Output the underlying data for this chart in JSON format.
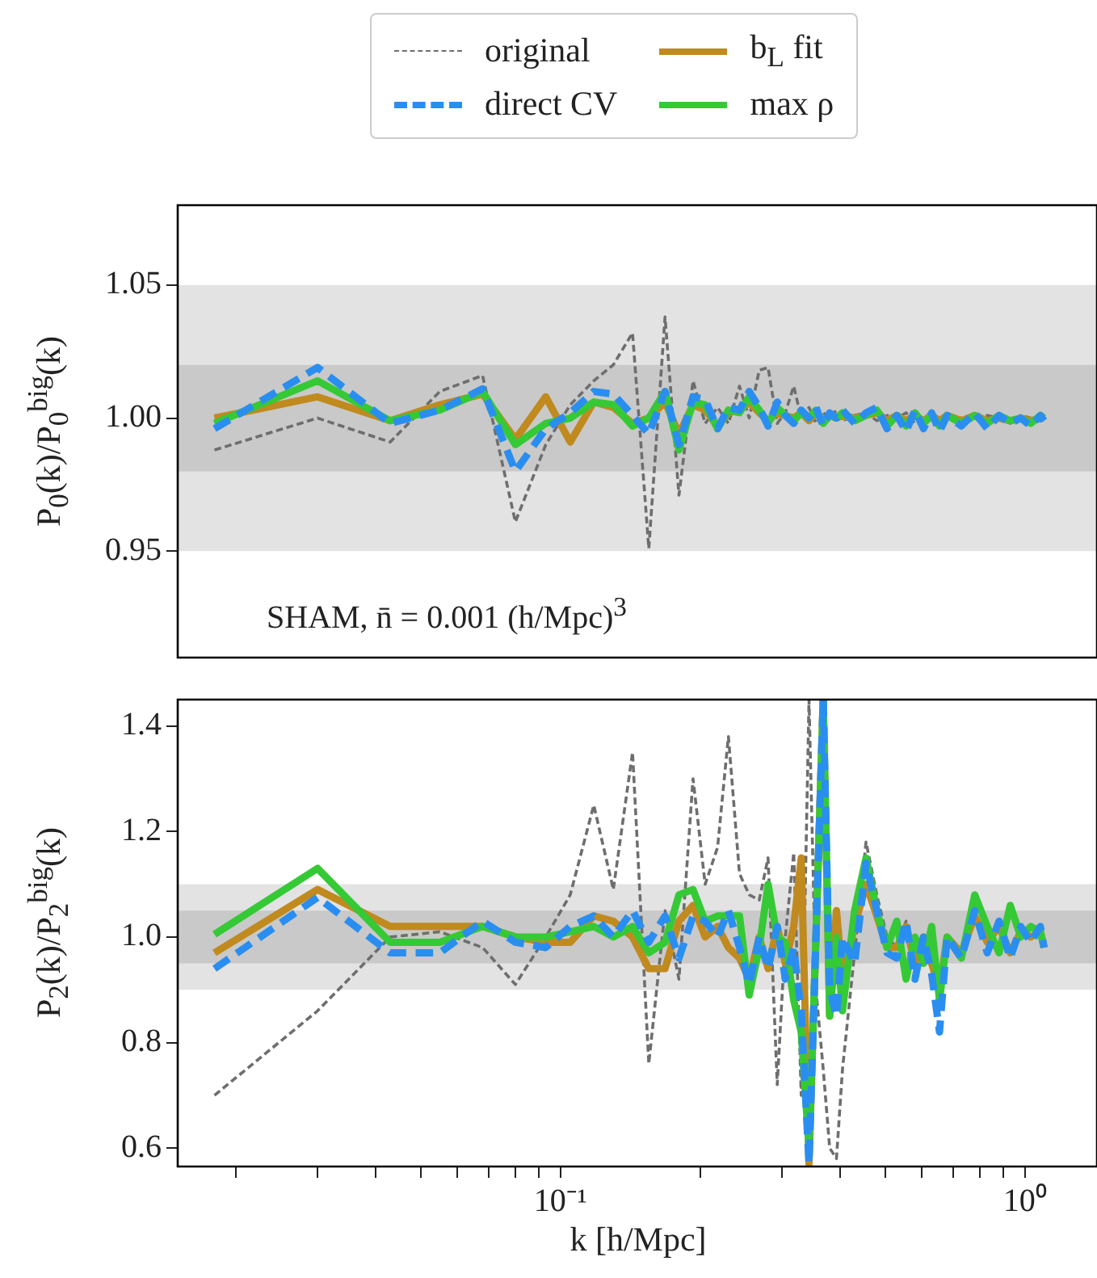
{
  "chart_data": [
    {
      "type": "line",
      "ylabel": "P$_{0}$(k)/P$_{0}$$^{big}$(k)",
      "legend": "top",
      "log": "x",
      "grid": false,
      "tick_labels": "y",
      "x": [
        0.018,
        0.03,
        0.043,
        0.055,
        0.068,
        0.08,
        0.093,
        0.105,
        0.118,
        0.13,
        0.143,
        0.155,
        0.168,
        0.18,
        0.193,
        0.205,
        0.218,
        0.23,
        0.243,
        0.255,
        0.268,
        0.28,
        0.293,
        0.305,
        0.318,
        0.33,
        0.343,
        0.355,
        0.368,
        0.38,
        0.393,
        0.405,
        0.43,
        0.455,
        0.48,
        0.505,
        0.53,
        0.555,
        0.58,
        0.605,
        0.63,
        0.655,
        0.68,
        0.73,
        0.78,
        0.83,
        0.88,
        0.93,
        0.98,
        1.03,
        1.08,
        1.1
      ],
      "xlim": [
        0.015,
        1.43
      ],
      "ylim": [
        0.91,
        1.08
      ],
      "yticks": [
        {
          "value": 0.95,
          "label": "0.95"
        },
        {
          "value": 1,
          "label": "1.00"
        },
        {
          "value": 1.05,
          "label": "1.05"
        }
      ],
      "bands": [
        {
          "axis": "y",
          "from": 0.95,
          "to": 1.05,
          "color": "#e3e3e3"
        },
        {
          "axis": "y",
          "from": 0.98,
          "to": 1.02,
          "color": "#c9c9c9"
        }
      ],
      "annotations": [
        "SHAM, n̄ = 0.001 (h/Mpc)$^{3}$"
      ],
      "series": [
        {
          "name": "original",
          "color": "#6e6e6e",
          "line_style": "dashed",
          "values": [
            0.988,
            1.0,
            0.991,
            1.01,
            1.016,
            0.961,
            0.99,
            1.005,
            1.014,
            1.02,
            1.032,
            0.951,
            1.038,
            0.971,
            1.014,
            0.998,
            1.004,
            0.998,
            1.012,
            1.0,
            1.018,
            1.019,
            0.998,
            1.002,
            1.012,
            1.0,
            1.004,
            0.998,
            1.002,
            1.0,
            1.003,
            0.999,
            1.001,
            1.002,
            0.999,
            1.001,
            1.0,
            1.002,
            0.998,
            1.001,
            1.0,
            0.999,
            1.001,
            1.0,
            0.999,
            1.001,
            1.0,
            0.998,
            1.001,
            1.0,
            0.999,
            1.0
          ]
        },
        {
          "name": "b$_{L}$ fit",
          "color": "#c08a1e",
          "line_style": "solid",
          "values": [
            1.0,
            1.008,
            0.999,
            1.005,
            1.009,
            0.992,
            1.008,
            0.991,
            1.006,
            1.004,
            0.998,
            1.0,
            1.006,
            0.994,
            1.005,
            1.003,
            0.997,
            1.002,
            1.003,
            1.006,
            1.002,
            0.999,
            1.002,
            1.001,
            1.0,
            1.002,
            0.999,
            1.002,
            0.999,
            1.001,
            1.0,
            1.001,
            1.0,
            1.001,
            1.002,
            0.999,
            1.001,
            0.999,
            1.001,
            0.999,
            1.001,
            0.999,
            1.001,
            0.999,
            1.001,
            0.999,
            1.0,
            0.999,
            1.0,
            0.999,
            1.0,
            1.0
          ]
        },
        {
          "name": "direct CV",
          "color": "#2a8ef0",
          "line_style": "dashed",
          "values": [
            0.996,
            1.019,
            0.998,
            1.003,
            1.011,
            0.98,
            0.996,
            1.002,
            1.01,
            1.009,
            1.001,
            0.994,
            1.01,
            0.99,
            1.008,
            1.007,
            0.996,
            1.004,
            1.003,
            1.01,
            1.004,
            0.997,
            1.006,
            1.001,
            0.998,
            1.003,
            1.0,
            1.004,
            0.997,
            1.002,
            1.0,
            1.003,
            0.998,
            1.002,
            1.004,
            0.996,
            1.001,
            0.995,
            1.003,
            0.996,
            1.002,
            0.995,
            1.001,
            0.997,
            1.002,
            0.996,
            1.001,
            0.998,
            1.0,
            0.997,
            1.001,
            0.999
          ]
        },
        {
          "name": "max ρ",
          "color": "#36c936",
          "line_style": "solid",
          "values": [
            0.998,
            1.014,
            0.999,
            1.003,
            1.01,
            0.99,
            0.998,
            1.0,
            1.006,
            1.005,
            0.997,
            1.0,
            1.01,
            0.988,
            1.006,
            1.005,
            0.996,
            1.003,
            1.002,
            1.008,
            1.003,
            0.998,
            1.004,
            1.001,
            0.999,
            1.002,
            1.0,
            1.003,
            0.998,
            1.001,
            1.0,
            1.002,
            0.999,
            1.001,
            1.003,
            0.997,
            1.001,
            0.997,
            1.002,
            0.998,
            1.001,
            0.997,
            1.001,
            0.998,
            1.001,
            0.998,
            1.001,
            0.999,
            1.0,
            0.998,
            1.001,
            1.0
          ]
        }
      ]
    },
    {
      "type": "line",
      "ylabel": "P$_{2}$(k)/P$_{2}$$^{big}$(k)",
      "xlabel": "k [h/Mpc]",
      "log": "x",
      "grid": false,
      "x": [
        0.018,
        0.03,
        0.043,
        0.055,
        0.068,
        0.08,
        0.093,
        0.105,
        0.118,
        0.13,
        0.143,
        0.155,
        0.168,
        0.18,
        0.193,
        0.205,
        0.218,
        0.23,
        0.243,
        0.255,
        0.268,
        0.28,
        0.293,
        0.305,
        0.318,
        0.33,
        0.343,
        0.355,
        0.368,
        0.38,
        0.393,
        0.405,
        0.43,
        0.455,
        0.48,
        0.505,
        0.53,
        0.555,
        0.58,
        0.605,
        0.63,
        0.655,
        0.68,
        0.73,
        0.78,
        0.83,
        0.88,
        0.93,
        0.98,
        1.03,
        1.08,
        1.1
      ],
      "xlim": [
        0.015,
        1.43
      ],
      "ylim": [
        0.565,
        1.45
      ],
      "xticks": [
        {
          "value": 0.02,
          "label": null
        },
        {
          "value": 0.03,
          "label": null
        },
        {
          "value": 0.04,
          "label": null
        },
        {
          "value": 0.05,
          "label": null
        },
        {
          "value": 0.06,
          "label": null
        },
        {
          "value": 0.07,
          "label": null
        },
        {
          "value": 0.08,
          "label": null
        },
        {
          "value": 0.09,
          "label": null
        },
        {
          "value": 0.1,
          "label": "10⁻¹"
        },
        {
          "value": 0.2,
          "label": null
        },
        {
          "value": 0.3,
          "label": null
        },
        {
          "value": 0.4,
          "label": null
        },
        {
          "value": 0.5,
          "label": null
        },
        {
          "value": 0.6,
          "label": null
        },
        {
          "value": 0.7,
          "label": null
        },
        {
          "value": 0.8,
          "label": null
        },
        {
          "value": 0.9,
          "label": null
        },
        {
          "value": 1,
          "label": "10⁰"
        }
      ],
      "yticks": [
        0.6,
        0.8,
        {
          "value": 1,
          "label": "1.0"
        },
        1.2,
        1.4
      ],
      "bands": [
        {
          "axis": "y",
          "from": 0.9,
          "to": 1.1,
          "color": "#e3e3e3"
        },
        {
          "axis": "y",
          "from": 0.95,
          "to": 1.05,
          "color": "#c9c9c9"
        }
      ],
      "series": [
        {
          "color": "#6e6e6e",
          "line_style": "dashed",
          "values": [
            0.7,
            0.86,
            1.0,
            1.01,
            0.98,
            0.91,
            1.0,
            1.08,
            1.25,
            1.09,
            1.35,
            0.76,
            1.05,
            0.92,
            1.3,
            1.1,
            1.17,
            1.38,
            1.12,
            1.08,
            1.07,
            1.15,
            0.72,
            1.0,
            1.16,
            0.7,
            1.45,
            0.9,
            0.75,
            0.6,
            0.58,
            0.75,
            0.97,
            1.18,
            1.08,
            1.0,
            0.98,
            1.03,
            0.95,
            1.0,
            0.96,
            0.9,
            1.0,
            0.97,
            1.04,
            0.99,
            1.02,
            0.97,
            1.01,
            1.0,
            1.01,
            0.99
          ]
        },
        {
          "color": "#c08a1e",
          "line_style": "solid",
          "values": [
            0.97,
            1.09,
            1.02,
            1.02,
            1.02,
            1.0,
            0.99,
            0.99,
            1.04,
            1.03,
            1.0,
            0.94,
            0.94,
            1.03,
            1.06,
            1.0,
            1.02,
            0.98,
            0.96,
            0.92,
            1.0,
            0.94,
            1.02,
            0.95,
            1.02,
            1.15,
            0.57,
            1.0,
            1.45,
            0.85,
            1.05,
            0.92,
            1.02,
            1.1,
            1.04,
            0.98,
            0.98,
            1.02,
            0.95,
            1.0,
            0.95,
            0.9,
            1.0,
            0.97,
            1.04,
            0.99,
            1.02,
            0.97,
            1.01,
            1.0,
            1.01,
            0.98
          ]
        },
        {
          "color": "#2a8ef0",
          "line_style": "dashed",
          "values": [
            0.94,
            1.075,
            0.97,
            0.97,
            1.03,
            0.99,
            0.98,
            1.02,
            1.04,
            1.0,
            1.05,
            0.99,
            1.04,
            0.96,
            1.04,
            1.03,
            1.0,
            1.05,
            0.98,
            0.91,
            1.0,
            0.94,
            1.02,
            0.92,
            0.98,
            0.86,
            0.57,
            1.0,
            1.45,
            0.9,
            0.85,
            1.0,
            0.95,
            1.14,
            1.05,
            0.97,
            0.96,
            1.03,
            0.92,
            1.0,
            0.93,
            0.82,
            1.0,
            0.96,
            1.05,
            0.97,
            1.03,
            0.96,
            1.02,
            0.99,
            1.02,
            0.98
          ]
        },
        {
          "color": "#36c936",
          "line_style": "solid",
          "values": [
            1.005,
            1.13,
            0.99,
            0.99,
            1.02,
            1.0,
            1.0,
            1.01,
            1.02,
            1.0,
            1.02,
            0.97,
            0.99,
            1.08,
            1.09,
            1.03,
            1.04,
            1.04,
            1.04,
            0.89,
            0.98,
            1.1,
            1.0,
            0.99,
            0.88,
            0.82,
            0.6,
            1.0,
            1.45,
            0.85,
            1.0,
            0.86,
            1.05,
            1.15,
            1.05,
            0.98,
            1.03,
            0.92,
            1.0,
            0.95,
            1.02,
            0.88,
            1.0,
            0.96,
            1.08,
            1.02,
            0.97,
            1.06,
            1.0,
            1.02,
            1.01,
            0.98
          ]
        }
      ]
    }
  ]
}
